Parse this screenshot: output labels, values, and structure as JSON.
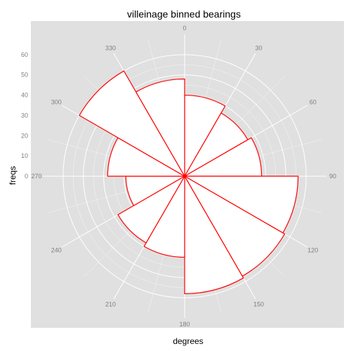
{
  "chart_data": {
    "type": "bar",
    "coord": "polar",
    "title": "villeinage binned bearings",
    "xlabel": "degrees",
    "ylabel": "freqs",
    "bin_width": 30,
    "categories": [
      0,
      30,
      60,
      90,
      120,
      150,
      180,
      210,
      240,
      270,
      300,
      330
    ],
    "values": [
      40,
      36,
      38,
      56,
      57,
      58,
      40,
      38,
      29,
      38,
      60,
      48
    ],
    "angle_ticks": [
      "0",
      "30",
      "60",
      "90",
      "120",
      "150",
      "180",
      "210",
      "240",
      "270",
      "300",
      "330"
    ],
    "radial_ticks": [
      "0",
      "10",
      "20",
      "30",
      "40",
      "50",
      "60"
    ],
    "rlim": [
      0,
      70
    ],
    "colors": {
      "panel": "#e0e0e0",
      "grid": "#ffffff",
      "bar_fill": "#ffffff",
      "bar_outline": "#ff0000"
    }
  }
}
